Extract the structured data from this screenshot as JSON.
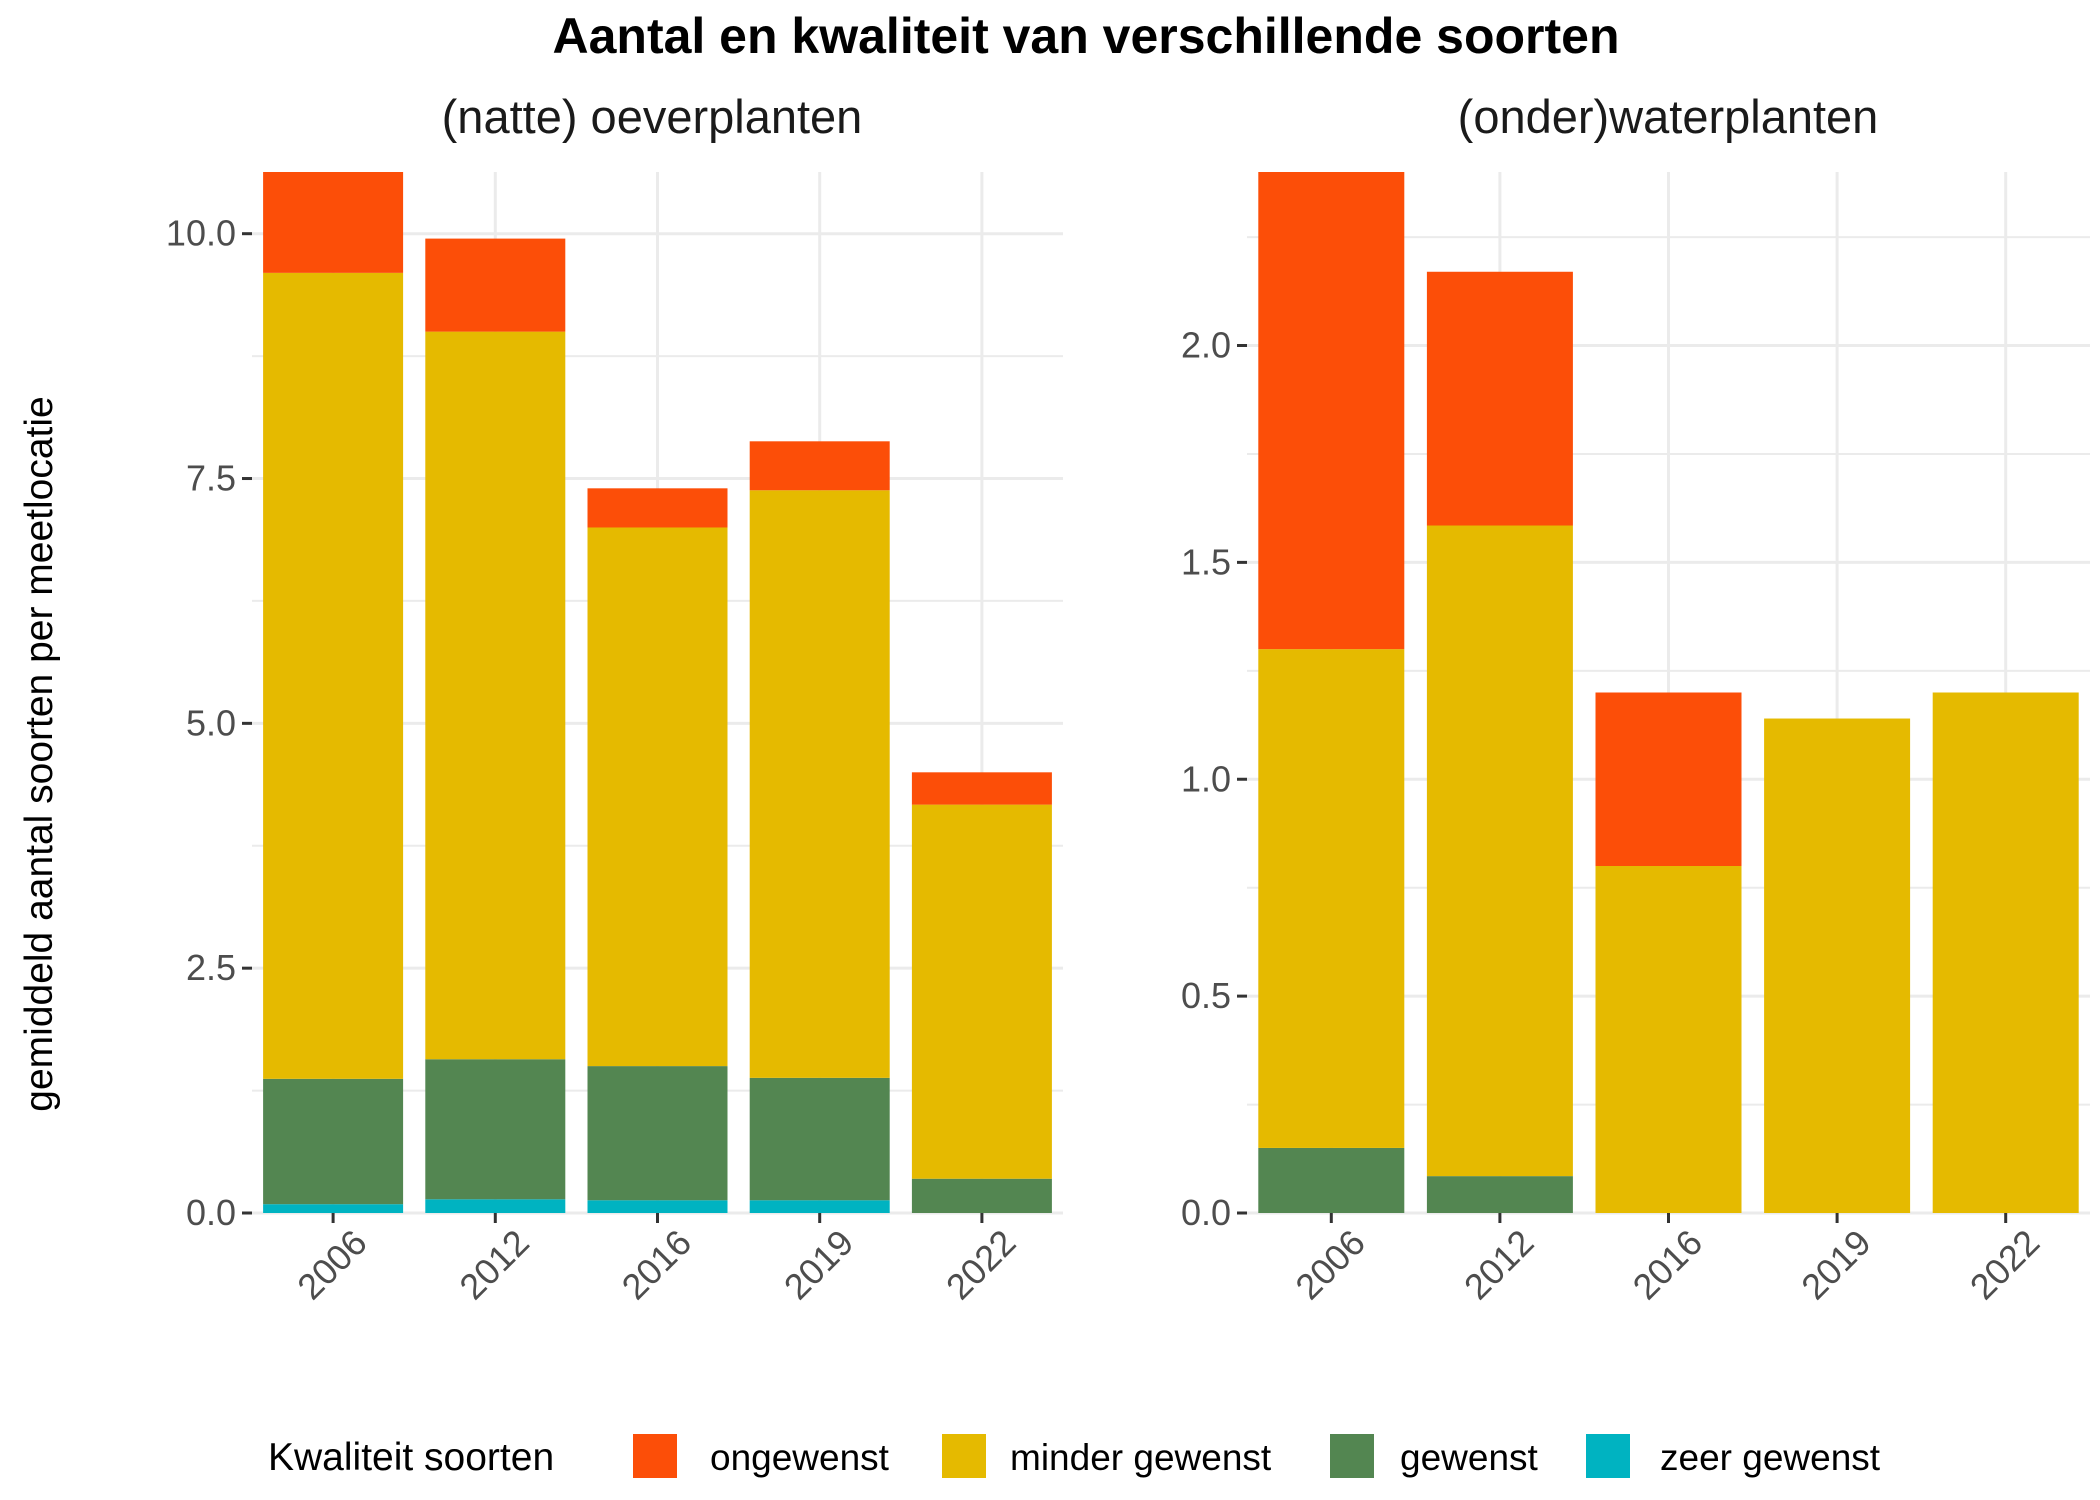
{
  "chart_data": {
    "type": "bar",
    "stacked": true,
    "title": "Aantal en kwaliteit van verschillende soorten",
    "ylabel": "gemiddeld aantal soorten per meetlocatie",
    "grid": true,
    "legend": {
      "title": "Kwaliteit soorten",
      "placement": "bottom",
      "entries": [
        "ongewenst",
        "minder gewenst",
        "gewenst",
        "zeer gewenst"
      ]
    },
    "colors": {
      "ongewenst": "#FC4E08",
      "minder gewenst": "#E5BA00",
      "gewenst": "#538651",
      "zeer gewenst": "#00B3C1"
    },
    "panels": [
      {
        "title": "(natte) oeverplanten",
        "categories": [
          "2006",
          "2012",
          "2016",
          "2019",
          "2022"
        ],
        "ylim": [
          0,
          10.63
        ],
        "yticks": [
          "0.0",
          "2.5",
          "5.0",
          "7.5",
          "10.0"
        ],
        "series": [
          {
            "name": "zeer gewenst",
            "values": [
              0.09,
              0.14,
              0.13,
              0.13,
              0.0
            ]
          },
          {
            "name": "gewenst",
            "values": [
              1.28,
              1.43,
              1.37,
              1.25,
              0.35
            ]
          },
          {
            "name": "minder gewenst",
            "values": [
              8.23,
              7.43,
              5.5,
              6.0,
              3.82
            ]
          },
          {
            "name": "ongewenst",
            "values": [
              1.03,
              0.95,
              0.4,
              0.5,
              0.33
            ]
          }
        ]
      },
      {
        "title": "(onder)waterplanten",
        "categories": [
          "2006",
          "2012",
          "2016",
          "2019",
          "2022"
        ],
        "ylim": [
          0,
          2.4
        ],
        "yticks": [
          "0.0",
          "0.5",
          "1.0",
          "1.5",
          "2.0"
        ],
        "series": [
          {
            "name": "zeer gewenst",
            "values": [
              0.0,
              0.0,
              0.0,
              0.0,
              0.0
            ]
          },
          {
            "name": "gewenst",
            "values": [
              0.15,
              0.085,
              0.0,
              0.0,
              0.0
            ]
          },
          {
            "name": "minder gewenst",
            "values": [
              1.15,
              1.5,
              0.8,
              1.14,
              1.2
            ]
          },
          {
            "name": "ongewenst",
            "values": [
              1.1,
              0.585,
              0.4,
              0.0,
              0.0
            ]
          }
        ]
      }
    ]
  }
}
